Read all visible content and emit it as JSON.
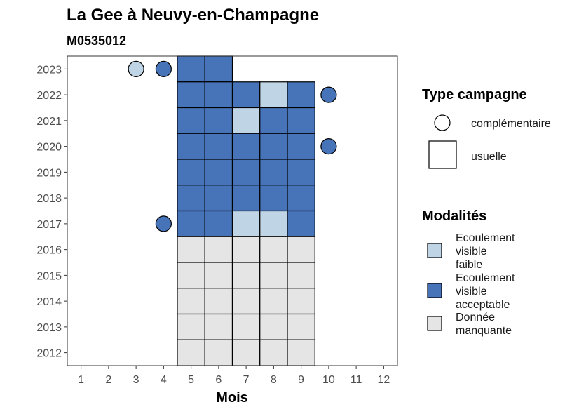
{
  "chart_data": {
    "type": "heatmap",
    "title": "La Gee à Neuvy-en-Champagne",
    "subtitle": "M0535012",
    "xlabel": "Mois",
    "ylabel": "",
    "x_ticks": [
      "1",
      "2",
      "3",
      "4",
      "5",
      "6",
      "7",
      "8",
      "9",
      "10",
      "11",
      "12"
    ],
    "y_ticks": [
      "2012",
      "2013",
      "2014",
      "2015",
      "2016",
      "2017",
      "2018",
      "2019",
      "2020",
      "2021",
      "2022",
      "2023"
    ],
    "xlim": [
      0.5,
      12.5
    ],
    "ylim": [
      2011.5,
      2023.5
    ],
    "colors": {
      "faible": "#bfd4e4",
      "acceptable": "#4774b8",
      "manquante": "#e5e5e5",
      "border": "#000000"
    },
    "usuelle_cells": [
      {
        "year": 2023,
        "month": 5,
        "modalite": "acceptable"
      },
      {
        "year": 2023,
        "month": 6,
        "modalite": "acceptable"
      },
      {
        "year": 2022,
        "month": 5,
        "modalite": "acceptable"
      },
      {
        "year": 2022,
        "month": 6,
        "modalite": "acceptable"
      },
      {
        "year": 2022,
        "month": 7,
        "modalite": "acceptable"
      },
      {
        "year": 2022,
        "month": 8,
        "modalite": "faible"
      },
      {
        "year": 2022,
        "month": 9,
        "modalite": "acceptable"
      },
      {
        "year": 2021,
        "month": 5,
        "modalite": "acceptable"
      },
      {
        "year": 2021,
        "month": 6,
        "modalite": "acceptable"
      },
      {
        "year": 2021,
        "month": 7,
        "modalite": "faible"
      },
      {
        "year": 2021,
        "month": 8,
        "modalite": "acceptable"
      },
      {
        "year": 2021,
        "month": 9,
        "modalite": "acceptable"
      },
      {
        "year": 2020,
        "month": 5,
        "modalite": "acceptable"
      },
      {
        "year": 2020,
        "month": 6,
        "modalite": "acceptable"
      },
      {
        "year": 2020,
        "month": 7,
        "modalite": "acceptable"
      },
      {
        "year": 2020,
        "month": 8,
        "modalite": "acceptable"
      },
      {
        "year": 2020,
        "month": 9,
        "modalite": "acceptable"
      },
      {
        "year": 2019,
        "month": 5,
        "modalite": "acceptable"
      },
      {
        "year": 2019,
        "month": 6,
        "modalite": "acceptable"
      },
      {
        "year": 2019,
        "month": 7,
        "modalite": "acceptable"
      },
      {
        "year": 2019,
        "month": 8,
        "modalite": "acceptable"
      },
      {
        "year": 2019,
        "month": 9,
        "modalite": "acceptable"
      },
      {
        "year": 2018,
        "month": 5,
        "modalite": "acceptable"
      },
      {
        "year": 2018,
        "month": 6,
        "modalite": "acceptable"
      },
      {
        "year": 2018,
        "month": 7,
        "modalite": "acceptable"
      },
      {
        "year": 2018,
        "month": 8,
        "modalite": "acceptable"
      },
      {
        "year": 2018,
        "month": 9,
        "modalite": "acceptable"
      },
      {
        "year": 2017,
        "month": 5,
        "modalite": "acceptable"
      },
      {
        "year": 2017,
        "month": 6,
        "modalite": "acceptable"
      },
      {
        "year": 2017,
        "month": 7,
        "modalite": "faible"
      },
      {
        "year": 2017,
        "month": 8,
        "modalite": "faible"
      },
      {
        "year": 2017,
        "month": 9,
        "modalite": "acceptable"
      },
      {
        "year": 2016,
        "month": 5,
        "modalite": "manquante"
      },
      {
        "year": 2016,
        "month": 6,
        "modalite": "manquante"
      },
      {
        "year": 2016,
        "month": 7,
        "modalite": "manquante"
      },
      {
        "year": 2016,
        "month": 8,
        "modalite": "manquante"
      },
      {
        "year": 2016,
        "month": 9,
        "modalite": "manquante"
      },
      {
        "year": 2015,
        "month": 5,
        "modalite": "manquante"
      },
      {
        "year": 2015,
        "month": 6,
        "modalite": "manquante"
      },
      {
        "year": 2015,
        "month": 7,
        "modalite": "manquante"
      },
      {
        "year": 2015,
        "month": 8,
        "modalite": "manquante"
      },
      {
        "year": 2015,
        "month": 9,
        "modalite": "manquante"
      },
      {
        "year": 2014,
        "month": 5,
        "modalite": "manquante"
      },
      {
        "year": 2014,
        "month": 6,
        "modalite": "manquante"
      },
      {
        "year": 2014,
        "month": 7,
        "modalite": "manquante"
      },
      {
        "year": 2014,
        "month": 8,
        "modalite": "manquante"
      },
      {
        "year": 2014,
        "month": 9,
        "modalite": "manquante"
      },
      {
        "year": 2013,
        "month": 5,
        "modalite": "manquante"
      },
      {
        "year": 2013,
        "month": 6,
        "modalite": "manquante"
      },
      {
        "year": 2013,
        "month": 7,
        "modalite": "manquante"
      },
      {
        "year": 2013,
        "month": 8,
        "modalite": "manquante"
      },
      {
        "year": 2013,
        "month": 9,
        "modalite": "manquante"
      },
      {
        "year": 2012,
        "month": 5,
        "modalite": "manquante"
      },
      {
        "year": 2012,
        "month": 6,
        "modalite": "manquante"
      },
      {
        "year": 2012,
        "month": 7,
        "modalite": "manquante"
      },
      {
        "year": 2012,
        "month": 8,
        "modalite": "manquante"
      },
      {
        "year": 2012,
        "month": 9,
        "modalite": "manquante"
      }
    ],
    "complementaire_points": [
      {
        "year": 2023,
        "month": 3,
        "modalite": "faible"
      },
      {
        "year": 2023,
        "month": 4,
        "modalite": "acceptable"
      },
      {
        "year": 2022,
        "month": 10,
        "modalite": "acceptable"
      },
      {
        "year": 2020,
        "month": 10,
        "modalite": "acceptable"
      },
      {
        "year": 2017,
        "month": 4,
        "modalite": "acceptable"
      }
    ],
    "legend": {
      "placement": "right",
      "type_title": "Type campagne",
      "type_items": [
        "complémentaire",
        "usuelle"
      ],
      "modalite_title": "Modalités",
      "modalite_items": [
        {
          "key": "faible",
          "lines": [
            "Ecoulement",
            "visible",
            "faible"
          ]
        },
        {
          "key": "acceptable",
          "lines": [
            "Ecoulement",
            "visible",
            "acceptable"
          ]
        },
        {
          "key": "manquante",
          "lines": [
            "Donnée",
            "manquante"
          ]
        }
      ]
    }
  }
}
